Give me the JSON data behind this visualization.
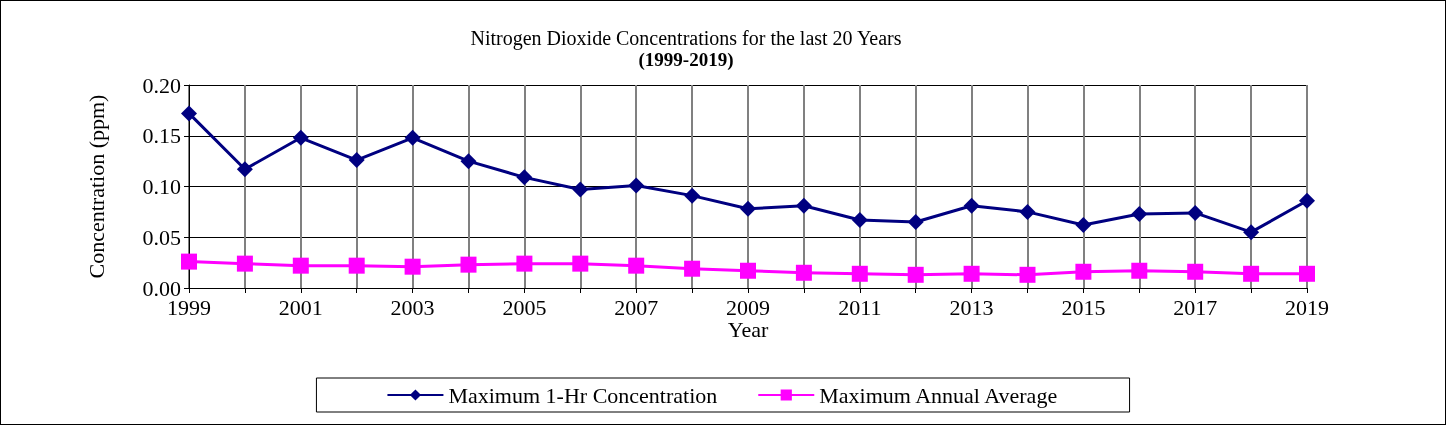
{
  "chart_data": {
    "type": "line",
    "title": "Nitrogen Dioxide Concentrations for the last 20 Years",
    "subtitle": "(1999-2019)",
    "xlabel": "Year",
    "ylabel": "Concentration (ppm)",
    "x": [
      1999,
      2000,
      2001,
      2002,
      2003,
      2004,
      2005,
      2006,
      2007,
      2008,
      2009,
      2010,
      2011,
      2012,
      2013,
      2014,
      2015,
      2016,
      2017,
      2018,
      2019
    ],
    "series": [
      {
        "name": "Maximum 1-Hr Concentration",
        "color": "#000080",
        "marker": "diamond",
        "values": [
          0.172,
          0.117,
          0.148,
          0.126,
          0.148,
          0.125,
          0.109,
          0.097,
          0.101,
          0.091,
          0.078,
          0.081,
          0.067,
          0.065,
          0.081,
          0.075,
          0.062,
          0.073,
          0.074,
          0.055,
          0.086
        ]
      },
      {
        "name": "Maximum Annual Average",
        "color": "#ff00ff",
        "marker": "square",
        "values": [
          0.026,
          0.024,
          0.022,
          0.022,
          0.021,
          0.023,
          0.024,
          0.024,
          0.022,
          0.019,
          0.017,
          0.015,
          0.014,
          0.013,
          0.014,
          0.013,
          0.016,
          0.017,
          0.016,
          0.014,
          0.014
        ]
      }
    ],
    "xlim": [
      1999,
      2019
    ],
    "xticks": [
      1999,
      {
        "value": 2000,
        "label": null
      },
      2001,
      {
        "value": 2002,
        "label": null
      },
      2003,
      {
        "value": 2004,
        "label": null
      },
      2005,
      {
        "value": 2006,
        "label": null
      },
      2007,
      {
        "value": 2008,
        "label": null
      },
      2009,
      {
        "value": 2010,
        "label": null
      },
      2011,
      {
        "value": 2012,
        "label": null
      },
      2013,
      {
        "value": 2014,
        "label": null
      },
      2015,
      {
        "value": 2016,
        "label": null
      },
      2017,
      {
        "value": 2018,
        "label": null
      },
      2019
    ],
    "ylim": [
      0,
      0.2
    ],
    "yticks": [
      {
        "value": 0,
        "label": "0.00"
      },
      {
        "value": 0.05,
        "label": "0.05"
      },
      {
        "value": 0.1,
        "label": "0.10"
      },
      {
        "value": 0.15,
        "label": "0.15"
      },
      {
        "value": 0.2,
        "label": "0.20"
      }
    ],
    "grid": true,
    "legend": "bottom",
    "line_style": "solid"
  }
}
